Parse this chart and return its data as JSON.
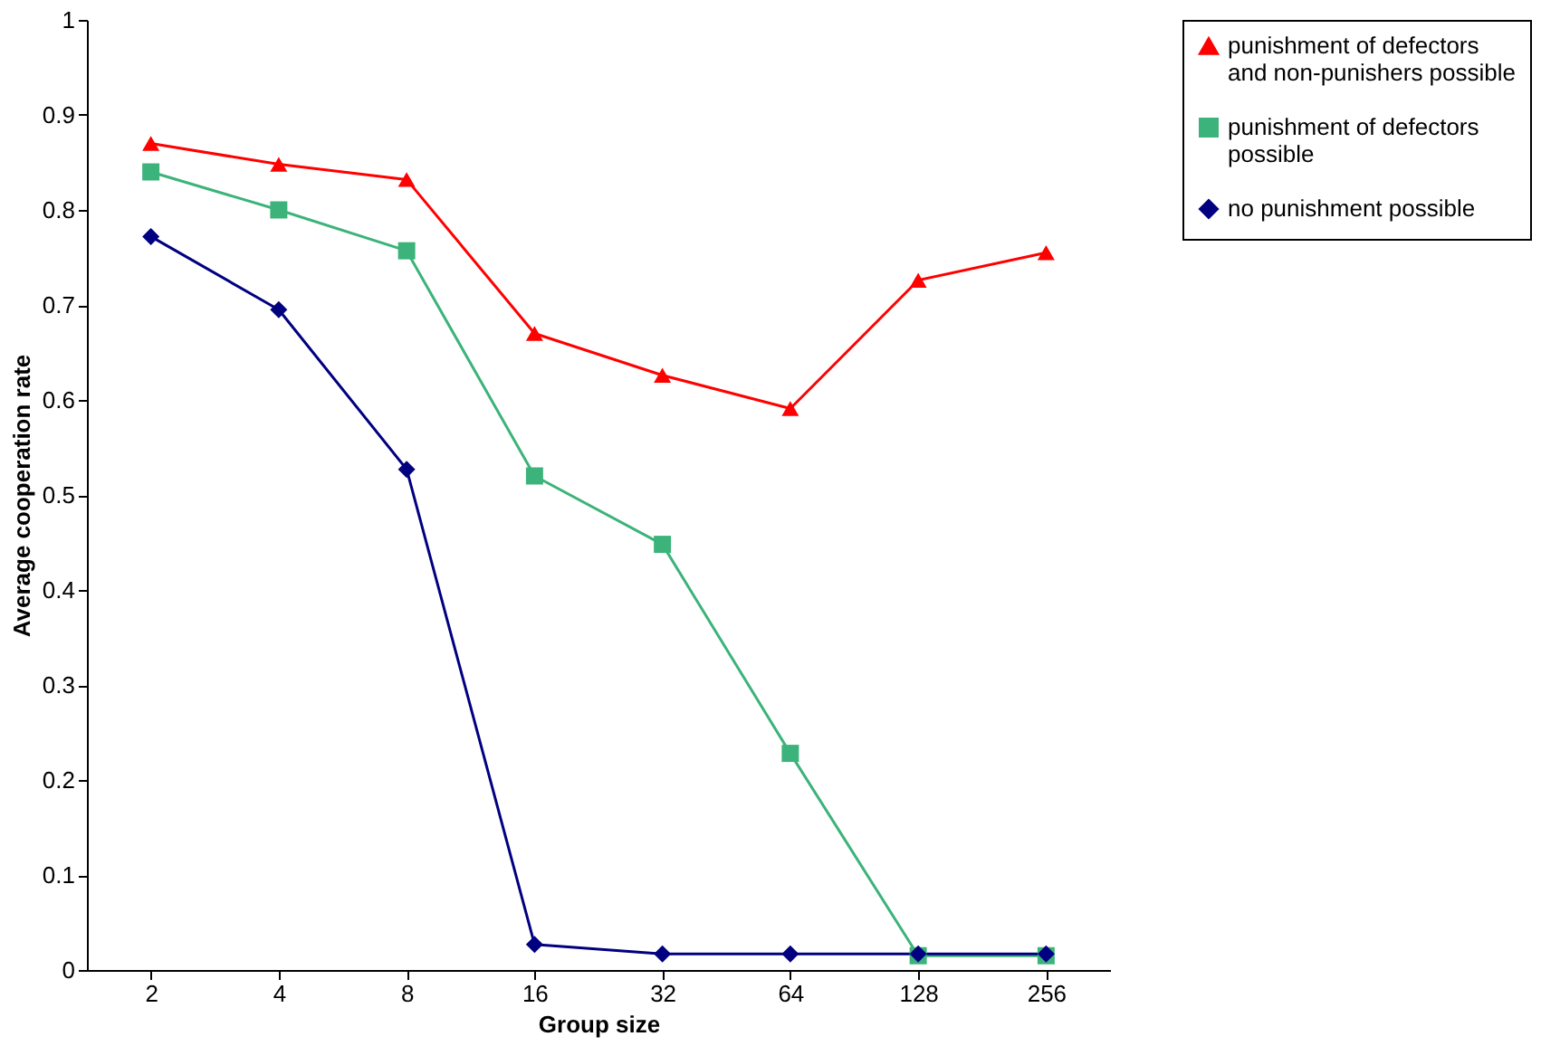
{
  "chart_data": {
    "type": "line",
    "xlabel": "Group size",
    "ylabel": "Average cooperation rate",
    "categories": [
      "2",
      "4",
      "8",
      "16",
      "32",
      "64",
      "128",
      "256"
    ],
    "ylim": [
      0,
      1
    ],
    "yticks": [
      0,
      0.1,
      0.2,
      0.3,
      0.4,
      0.5,
      0.6,
      0.7,
      0.8,
      0.9,
      1
    ],
    "grid": false,
    "legend": "right",
    "series": [
      {
        "name": "punishment of defectors and non-punishers possible",
        "color": "#ff0000",
        "marker": "triangle",
        "values": [
          0.87,
          0.848,
          0.832,
          0.67,
          0.626,
          0.591,
          0.726,
          0.755
        ]
      },
      {
        "name": "punishment of defectors possible",
        "color": "#3cb37a",
        "marker": "square",
        "values": [
          0.84,
          0.8,
          0.757,
          0.52,
          0.448,
          0.228,
          0.015,
          0.015
        ]
      },
      {
        "name": "no punishment possible",
        "color": "#000080",
        "marker": "diamond",
        "values": [
          0.772,
          0.695,
          0.527,
          0.027,
          0.017,
          0.017,
          0.017,
          0.017
        ]
      }
    ]
  }
}
